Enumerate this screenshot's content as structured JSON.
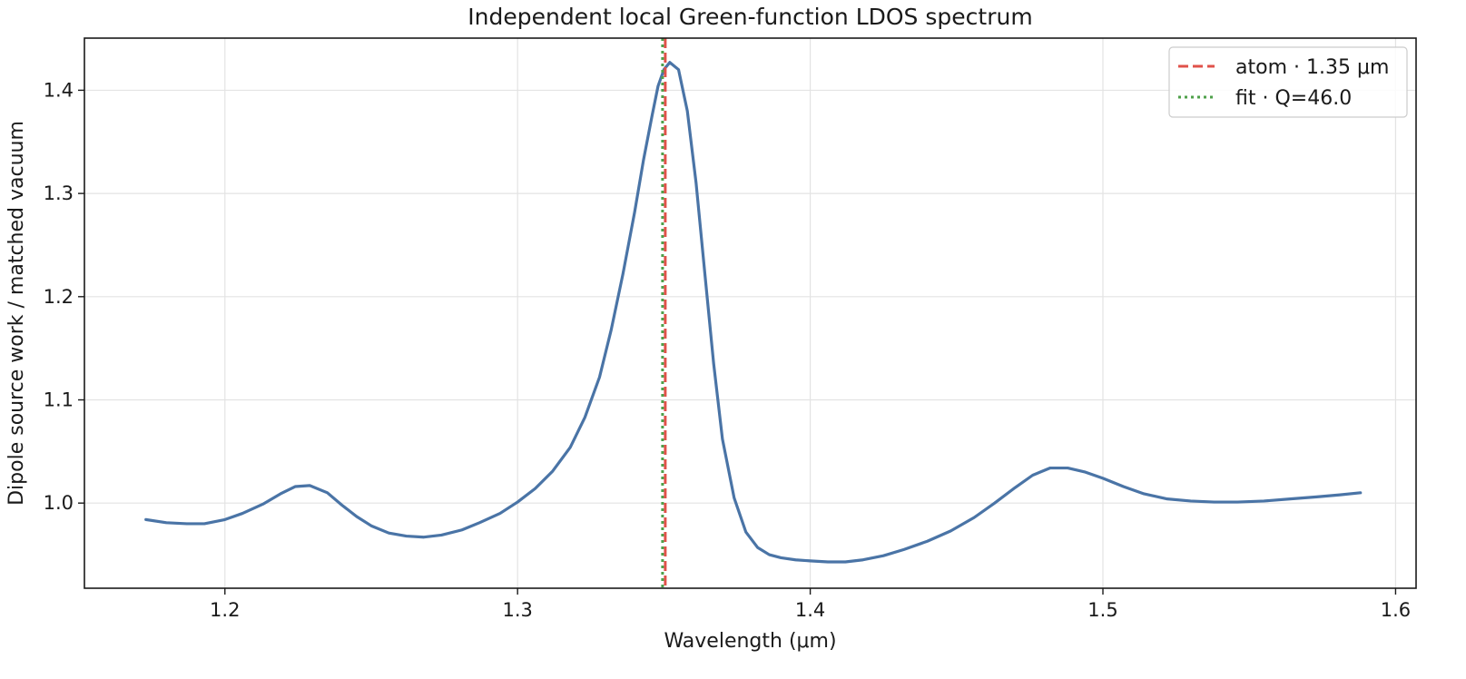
{
  "chart_data": {
    "type": "line",
    "title": "Independent local Green-function LDOS spectrum",
    "xlabel": "Wavelength (μm)",
    "ylabel": "Dipole source work / matched vacuum",
    "xlim": [
      1.152,
      1.607
    ],
    "ylim": [
      0.9175,
      1.4505
    ],
    "xticks": [
      1.2,
      1.3,
      1.4,
      1.5,
      1.6
    ],
    "xtick_labels": [
      "1.2",
      "1.3",
      "1.4",
      "1.5",
      "1.6"
    ],
    "yticks": [
      1.0,
      1.1,
      1.2,
      1.3,
      1.4
    ],
    "ytick_labels": [
      "1.0",
      "1.1",
      "1.2",
      "1.3",
      "1.4"
    ],
    "grid": true,
    "legend_position": "top-right",
    "series": [
      {
        "name": "",
        "color": "#4a74a6",
        "style": "solid",
        "x": [
          1.173,
          1.18,
          1.187,
          1.193,
          1.2,
          1.206,
          1.213,
          1.219,
          1.224,
          1.229,
          1.235,
          1.24,
          1.245,
          1.25,
          1.256,
          1.262,
          1.268,
          1.274,
          1.281,
          1.287,
          1.294,
          1.3,
          1.306,
          1.312,
          1.318,
          1.323,
          1.328,
          1.332,
          1.336,
          1.34,
          1.343,
          1.346,
          1.348,
          1.35,
          1.352,
          1.355,
          1.358,
          1.361,
          1.364,
          1.367,
          1.37,
          1.374,
          1.378,
          1.382,
          1.386,
          1.39,
          1.395,
          1.4,
          1.406,
          1.412,
          1.418,
          1.425,
          1.432,
          1.44,
          1.448,
          1.456,
          1.463,
          1.47,
          1.476,
          1.482,
          1.488,
          1.494,
          1.5,
          1.507,
          1.514,
          1.522,
          1.53,
          1.538,
          1.546,
          1.555,
          1.564,
          1.573,
          1.581,
          1.588
        ],
        "y": [
          0.984,
          0.981,
          0.98,
          0.98,
          0.984,
          0.99,
          0.999,
          1.009,
          1.016,
          1.017,
          1.01,
          0.998,
          0.987,
          0.978,
          0.971,
          0.968,
          0.967,
          0.969,
          0.974,
          0.981,
          0.99,
          1.001,
          1.014,
          1.031,
          1.054,
          1.083,
          1.122,
          1.168,
          1.222,
          1.282,
          1.332,
          1.376,
          1.404,
          1.42,
          1.427,
          1.42,
          1.38,
          1.31,
          1.222,
          1.135,
          1.062,
          1.005,
          0.972,
          0.957,
          0.95,
          0.947,
          0.945,
          0.944,
          0.943,
          0.943,
          0.945,
          0.949,
          0.955,
          0.963,
          0.973,
          0.986,
          1.0,
          1.015,
          1.027,
          1.034,
          1.034,
          1.03,
          1.024,
          1.016,
          1.009,
          1.004,
          1.002,
          1.001,
          1.001,
          1.002,
          1.004,
          1.006,
          1.008,
          1.01
        ]
      }
    ],
    "vlines": [
      {
        "name": "atom · 1.35 μm",
        "x": 1.35,
        "color": "#e0524a",
        "style": "dashed"
      },
      {
        "name": "fit · Q=46.0",
        "x": 1.35,
        "color": "#4ea04a",
        "style": "dotted"
      }
    ]
  }
}
